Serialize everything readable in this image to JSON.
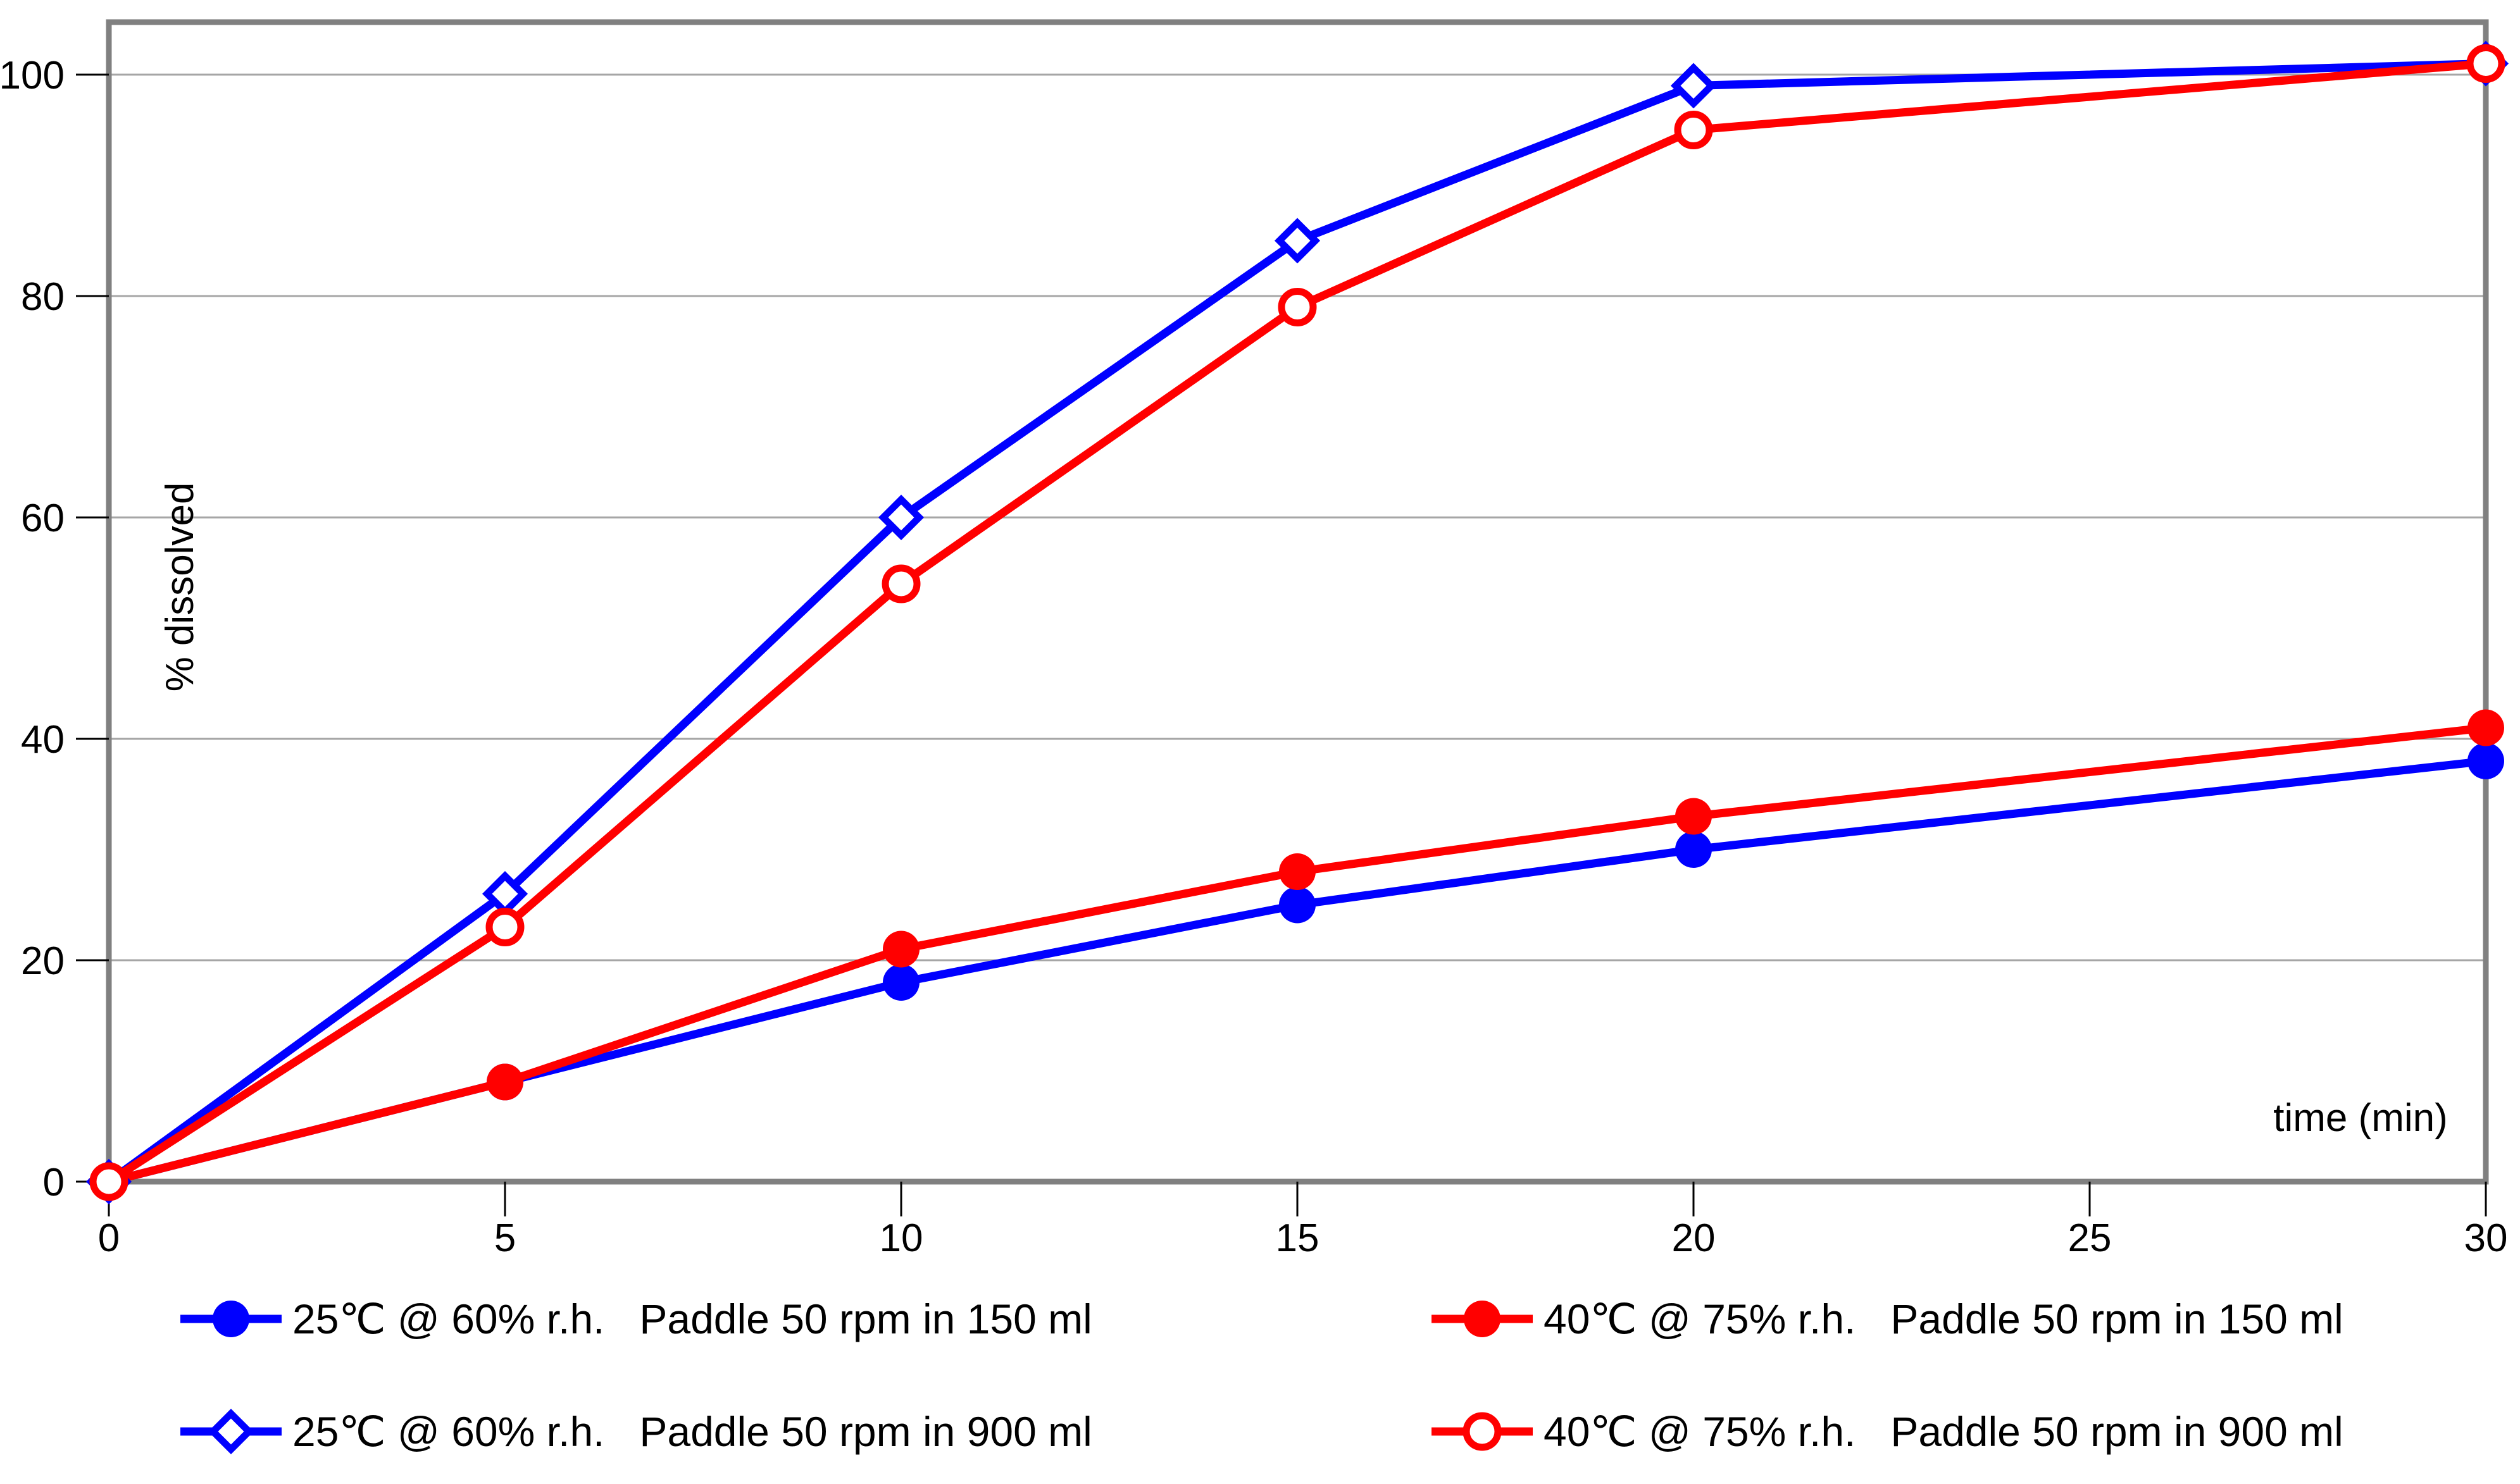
{
  "figure": {
    "background": "#ffffff"
  },
  "colors": {
    "blue": "#0000ff",
    "red": "#ff0000",
    "plot_border": "#808080",
    "gridline": "#a6a6a6",
    "tick": "#000000",
    "text": "#000000"
  },
  "axes": {
    "x": {
      "label": "time (min)",
      "ticks": [
        "0",
        "5",
        "10",
        "15",
        "20",
        "25",
        "30"
      ],
      "tick_values": [
        0,
        5,
        10,
        15,
        20,
        25,
        30
      ]
    },
    "y": {
      "label": "% dissolved",
      "ticks": [
        "0",
        "20",
        "40",
        "60",
        "80",
        "100"
      ],
      "tick_values": [
        0,
        20,
        40,
        60,
        80,
        100
      ]
    }
  },
  "chart_data": {
    "type": "line",
    "x": [
      0,
      5,
      10,
      15,
      20,
      30
    ],
    "xlabel": "time (min)",
    "ylabel": "% dissolved",
    "xlim": [
      0,
      30
    ],
    "ylim": [
      0,
      105
    ],
    "grid": "horizontal gridlines at y = 20, 40, 60, 80, 100",
    "legend_position": "below chart, two columns by two rows",
    "series": [
      {
        "condition": "25℃ @ 60% r.h.",
        "method": "Paddle 50 rpm in 150 ml",
        "color": "#0000ff",
        "marker": "filled-circle",
        "values": [
          0,
          9,
          18,
          25,
          30,
          38
        ]
      },
      {
        "condition": "40℃ @ 75% r.h.",
        "method": "Paddle 50 rpm in 150 ml",
        "color": "#ff0000",
        "marker": "filled-circle",
        "values": [
          0,
          9,
          21,
          28,
          33,
          41
        ]
      },
      {
        "condition": "25℃ @ 60% r.h.",
        "method": "Paddle 50 rpm in 900 ml",
        "color": "#0000ff",
        "marker": "open-diamond",
        "values": [
          0,
          26,
          60,
          85,
          99,
          101
        ]
      },
      {
        "condition": "40℃ @ 75% r.h.",
        "method": "Paddle 50 rpm in 900 ml",
        "color": "#ff0000",
        "marker": "open-circle",
        "values": [
          0,
          23,
          54,
          79,
          95,
          101
        ]
      }
    ]
  }
}
